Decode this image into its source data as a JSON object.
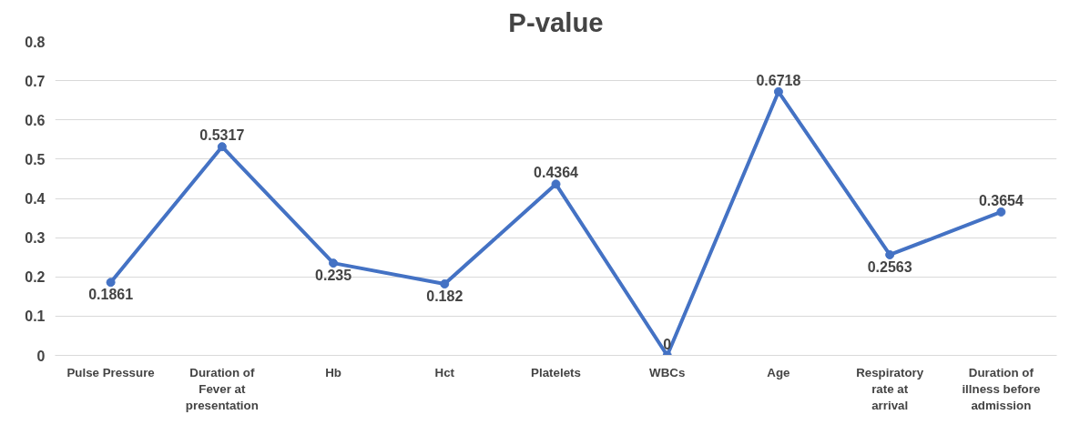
{
  "chart_data": {
    "type": "line",
    "title": "P-value",
    "categories": [
      "Pulse Pressure",
      "Duration of Fever at presentation",
      "Hb",
      "Hct",
      "Platelets",
      "WBCs",
      "Age",
      "Respiratory rate at arrival",
      "Duration of illness before admission"
    ],
    "series": [
      {
        "color": "#4472c4",
        "values": [
          0.1861,
          0.5317,
          0.235,
          0.182,
          0.4364,
          0,
          0.6718,
          0.2563,
          0.3654
        ]
      }
    ],
    "ylim": [
      0,
      0.8
    ],
    "yticks": [
      0,
      0.1,
      0.2,
      0.3,
      0.4,
      0.5,
      0.6,
      0.7,
      0.8
    ],
    "grid": "y",
    "marker": "circle",
    "line_style": "solid",
    "data_labels": true
  }
}
